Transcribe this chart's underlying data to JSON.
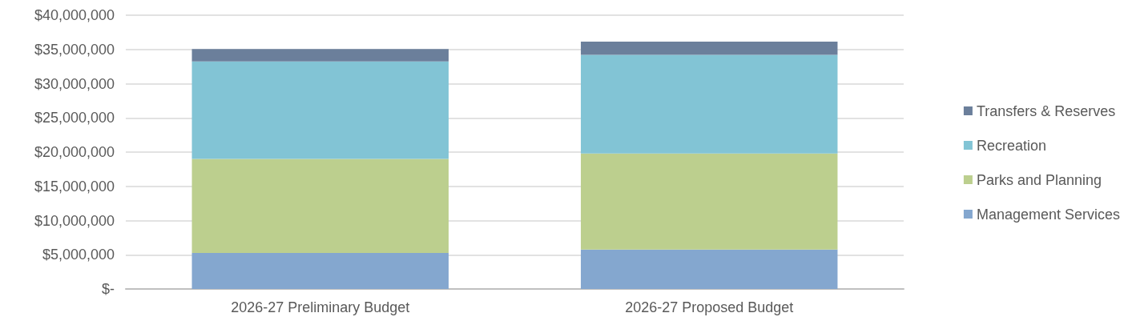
{
  "chart_data": {
    "type": "bar",
    "stacked": true,
    "categories": [
      "2026-27 Preliminary Budget",
      "2026-27 Proposed Budget"
    ],
    "series": [
      {
        "name": "Management Services",
        "color": "#84a7cf",
        "values": [
          5250000,
          5750000
        ]
      },
      {
        "name": "Parks and Planning",
        "color": "#bccf8e",
        "values": [
          13750000,
          14050000
        ]
      },
      {
        "name": "Recreation",
        "color": "#82c4d5",
        "values": [
          14250000,
          14400000
        ]
      },
      {
        "name": "Transfers & Reserves",
        "color": "#6b7f9b",
        "values": [
          1800000,
          1950000
        ]
      }
    ],
    "ylim": [
      0,
      40000000
    ],
    "yticks": [
      {
        "value": 0,
        "label": "$-"
      },
      {
        "value": 5000000,
        "label": "$5,000,000"
      },
      {
        "value": 10000000,
        "label": "$10,000,000"
      },
      {
        "value": 15000000,
        "label": "$15,000,000"
      },
      {
        "value": 20000000,
        "label": "$20,000,000"
      },
      {
        "value": 25000000,
        "label": "$25,000,000"
      },
      {
        "value": 30000000,
        "label": "$30,000,000"
      },
      {
        "value": 35000000,
        "label": "$35,000,000"
      },
      {
        "value": 40000000,
        "label": "$40,000,000"
      }
    ],
    "grid": "y",
    "legend": "right"
  }
}
